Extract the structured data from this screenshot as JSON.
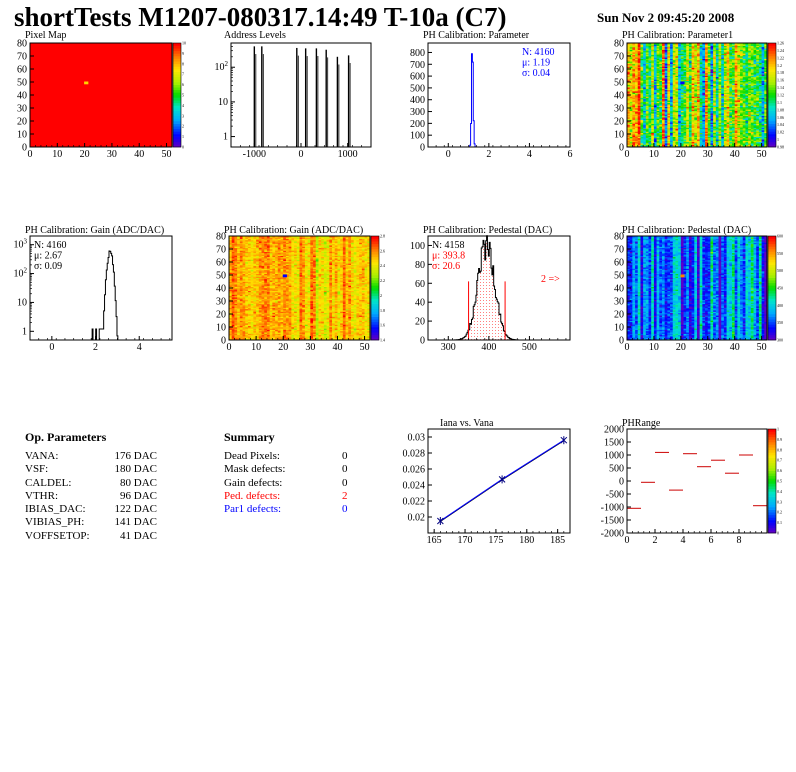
{
  "title": "shortTests M1207-080317.14:49 T-10a (C7)",
  "timestamp": "Sun Nov  2 09:45:20 2008",
  "colors": {
    "red": "#ff0000",
    "blue": "#0000ff",
    "hatch": "#ff8080"
  },
  "chart_data": [
    {
      "id": "pixel-map",
      "type": "heatmap",
      "title": "Pixel Map",
      "xlim": [
        0,
        52
      ],
      "ylim": [
        0,
        80
      ],
      "xticks": [
        "0",
        "10",
        "20",
        "30",
        "40",
        "50"
      ],
      "yticks": [
        "0",
        "10",
        "20",
        "30",
        "40",
        "50",
        "60",
        "70",
        "80"
      ],
      "uniform_value": 10,
      "highlight_cell": {
        "x": 20,
        "y": 49
      },
      "zlim": [
        0,
        10
      ],
      "zticks": [
        "0",
        "1",
        "2",
        "3",
        "4",
        "5",
        "6",
        "7",
        "8",
        "9",
        "10"
      ]
    },
    {
      "id": "address-levels",
      "type": "bar",
      "title": "Address Levels",
      "xlim": [
        -1500,
        1500
      ],
      "xticks": [
        "-1000",
        "0",
        "1000"
      ],
      "ylog": true,
      "ylim": [
        0.5,
        500
      ],
      "yticks": [
        {
          "base": "1",
          "exp": ""
        },
        {
          "base": "10",
          "exp": ""
        },
        {
          "base": "10",
          "exp": "2"
        }
      ],
      "peaks": [
        {
          "x": -1000,
          "count": 400
        },
        {
          "x": -840,
          "count": 400
        },
        {
          "x": -90,
          "count": 360
        },
        {
          "x": 100,
          "count": 350
        },
        {
          "x": 330,
          "count": 350
        },
        {
          "x": 540,
          "count": 320
        },
        {
          "x": 780,
          "count": 200
        },
        {
          "x": 1020,
          "count": 220
        }
      ]
    },
    {
      "id": "ph-cal-param",
      "type": "bar",
      "title": "PH Calibration: Parameter",
      "xlim": [
        -1,
        6
      ],
      "ylim": [
        0,
        880
      ],
      "xticks": [
        "0",
        "2",
        "4",
        "6"
      ],
      "yticks": [
        "0",
        "100",
        "200",
        "300",
        "400",
        "500",
        "600",
        "700",
        "800"
      ],
      "stats": {
        "n": "N: 4160",
        "mean": "μ: 1.19",
        "sigma": "σ: 0.04"
      },
      "peak": {
        "mean": 1.19,
        "sigma": 0.04,
        "max": 830
      }
    },
    {
      "id": "ph-cal-param1",
      "type": "heatmap",
      "title": "PH Calibration: Parameter1",
      "xlim": [
        0,
        52
      ],
      "ylim": [
        0,
        80
      ],
      "xticks": [
        "0",
        "10",
        "20",
        "30",
        "40",
        "50"
      ],
      "yticks": [
        "0",
        "10",
        "20",
        "30",
        "40",
        "50",
        "60",
        "70",
        "80"
      ],
      "zticks": [
        "0.98",
        "1",
        "1.02",
        "1.04",
        "1.06",
        "1.08",
        "1.1",
        "1.12",
        "1.14",
        "1.16",
        "1.18",
        "1.2",
        "1.22",
        "1.24",
        "1.26"
      ],
      "highlight_cell": {
        "x": 20,
        "y": 49
      },
      "seed": 7,
      "pattern": "param1"
    },
    {
      "id": "ph-gain-hist",
      "type": "bar",
      "title": "PH Calibration: Gain (ADC/DAC)",
      "xlim": [
        -1,
        5.5
      ],
      "xticks": [
        "0",
        "2",
        "4"
      ],
      "ylog": true,
      "ylim": [
        0.5,
        2000
      ],
      "yticks": [
        {
          "base": "1",
          "exp": ""
        },
        {
          "base": "10",
          "exp": ""
        },
        {
          "base": "10",
          "exp": "2"
        },
        {
          "base": "10",
          "exp": "3"
        }
      ],
      "stats": {
        "n": "N: 4160",
        "mean": "μ: 2.67",
        "sigma": "σ: 0.09"
      },
      "peak": {
        "mean": 2.67,
        "sigma": 0.09,
        "max": 600
      }
    },
    {
      "id": "ph-gain-map",
      "type": "heatmap",
      "title": "PH Calibration: Gain (ADC/DAC)",
      "xlim": [
        0,
        52
      ],
      "ylim": [
        0,
        80
      ],
      "xticks": [
        "0",
        "10",
        "20",
        "30",
        "40",
        "50"
      ],
      "yticks": [
        "0",
        "10",
        "20",
        "30",
        "40",
        "50",
        "60",
        "70",
        "80"
      ],
      "zticks": [
        "1.4",
        "1.6",
        "1.8",
        "2",
        "2.2",
        "2.4",
        "2.6",
        "2.8"
      ],
      "highlight_cell": {
        "x": 20,
        "y": 49
      },
      "seed": 11,
      "pattern": "gain"
    },
    {
      "id": "ph-pedestal-hist",
      "type": "bar",
      "title": "PH Calibration: Pedestal (DAC)",
      "xlim": [
        250,
        600
      ],
      "ylim": [
        0,
        110
      ],
      "xticks": [
        "300",
        "400",
        "500"
      ],
      "yticks": [
        "0",
        "20",
        "40",
        "60",
        "80",
        "100"
      ],
      "stats": {
        "n": "N: 4158",
        "mean": "μ: 393.8",
        "sigma": "σ: 20.6"
      },
      "annotation": "2 =>",
      "cut_lines": [
        350,
        440
      ],
      "peak": {
        "mean": 393.8,
        "sigma": 20.6,
        "max": 100
      }
    },
    {
      "id": "ph-pedestal-map",
      "type": "heatmap",
      "title": "PH Calibration: Pedestal (DAC)",
      "xlim": [
        0,
        52
      ],
      "ylim": [
        0,
        80
      ],
      "xticks": [
        "0",
        "10",
        "20",
        "30",
        "40",
        "50"
      ],
      "yticks": [
        "0",
        "10",
        "20",
        "30",
        "40",
        "50",
        "60",
        "70",
        "80"
      ],
      "zticks": [
        "300",
        "350",
        "400",
        "450",
        "500",
        "550",
        "600"
      ],
      "highlight_cell": {
        "x": 20,
        "y": 49
      },
      "seed": 23,
      "pattern": "pedestal"
    },
    {
      "id": "iana-vana",
      "type": "line",
      "title": "Iana vs. Vana",
      "xlim": [
        164,
        187
      ],
      "ylim": [
        0.018,
        0.031
      ],
      "xticks": [
        "165",
        "170",
        "175",
        "180",
        "185"
      ],
      "yticks": [
        "0.02",
        "0.022",
        "0.024",
        "0.026",
        "0.028",
        "0.03"
      ],
      "x": [
        166,
        176,
        186
      ],
      "y": [
        0.0195,
        0.0247,
        0.0296
      ]
    },
    {
      "id": "phrange",
      "type": "scatter",
      "title": "PHRange",
      "xlim": [
        0,
        10
      ],
      "ylim": [
        -2000,
        2000
      ],
      "xticks": [
        "0",
        "2",
        "4",
        "6",
        "8"
      ],
      "yticks": [
        "-2000",
        "-1500",
        "-1000",
        "-500",
        "0",
        "500",
        "1000",
        "1500",
        "2000"
      ],
      "zticks": [
        "0",
        "0.1",
        "0.2",
        "0.3",
        "0.4",
        "0.5",
        "0.6",
        "0.7",
        "0.8",
        "0.9",
        "1"
      ],
      "segments": [
        {
          "x0": 0,
          "x1": 1,
          "y": -1050
        },
        {
          "x0": 1,
          "x1": 2,
          "y": -50
        },
        {
          "x0": 2,
          "x1": 3,
          "y": 1100
        },
        {
          "x0": 3,
          "x1": 4,
          "y": -350
        },
        {
          "x0": 4,
          "x1": 5,
          "y": 1050
        },
        {
          "x0": 5,
          "x1": 6,
          "y": 550
        },
        {
          "x0": 6,
          "x1": 7,
          "y": 800
        },
        {
          "x0": 7,
          "x1": 8,
          "y": 300
        },
        {
          "x0": 8,
          "x1": 9,
          "y": 1000
        },
        {
          "x0": 9,
          "x1": 10,
          "y": -950
        }
      ]
    }
  ],
  "op_parameters": {
    "title": "Op. Parameters",
    "rows": [
      {
        "name": "VANA:",
        "value": "176 DAC"
      },
      {
        "name": "VSF:",
        "value": "180 DAC"
      },
      {
        "name": "CALDEL:",
        "value": "80 DAC"
      },
      {
        "name": "VTHR:",
        "value": "96 DAC"
      },
      {
        "name": "IBIAS_DAC:",
        "value": "122 DAC"
      },
      {
        "name": "VIBIAS_PH:",
        "value": "141 DAC"
      },
      {
        "name": "VOFFSETOP:",
        "value": "41 DAC"
      }
    ]
  },
  "summary": {
    "title": "Summary",
    "rows": [
      {
        "name": "Dead Pixels:",
        "value": "0",
        "color": "#000000"
      },
      {
        "name": "Mask defects:",
        "value": "0",
        "color": "#000000"
      },
      {
        "name": "Gain defects:",
        "value": "0",
        "color": "#000000"
      },
      {
        "name": "Ped. defects:",
        "value": "2",
        "color": "#ff0000"
      },
      {
        "name": "Par1 defects:",
        "value": "0",
        "color": "#0000ff"
      }
    ]
  }
}
